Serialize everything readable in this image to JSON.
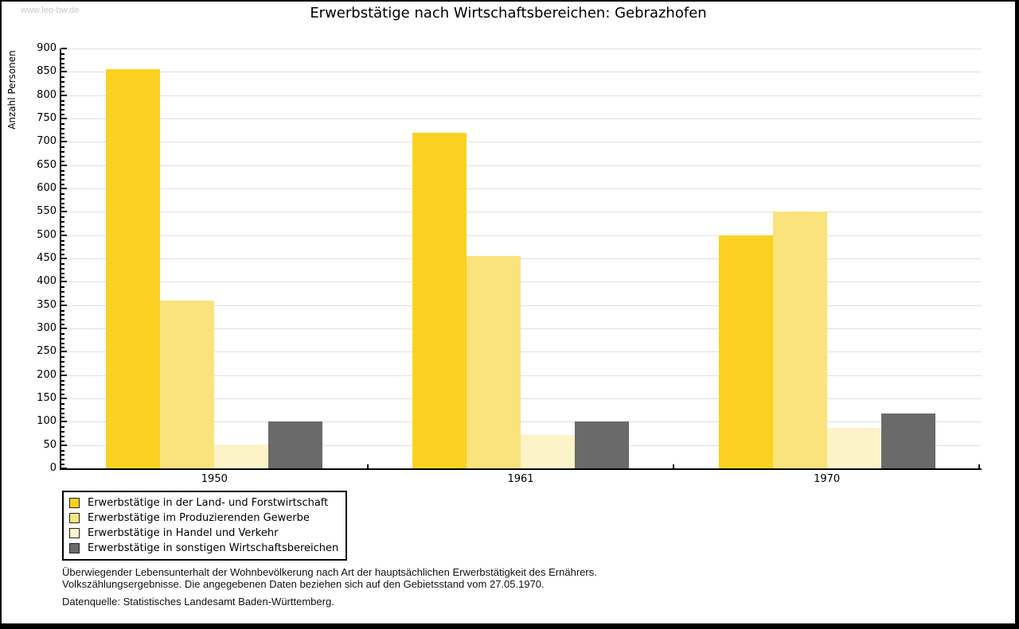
{
  "watermark": "www.leo-bw.de",
  "title": "Erwerbstätige nach Wirtschaftsbereichen: Gebrazhofen",
  "chart_data": {
    "type": "bar",
    "title": "Erwerbstätige nach Wirtschaftsbereichen: Gebrazhofen",
    "xlabel": "",
    "ylabel": "Anzahl Personen",
    "ylim": [
      0,
      900
    ],
    "ytick_step": 50,
    "minor_tick_step": 10,
    "grid": "horizontal",
    "legend_position": "bottom-left",
    "categories": [
      "1950",
      "1961",
      "1970"
    ],
    "series": [
      {
        "name": "Erwerbstätige in der Land- und Forstwirtschaft",
        "color": "#FBD121",
        "values": [
          855,
          719,
          500
        ]
      },
      {
        "name": "Erwerbstätige im Produzierenden Gewerbe",
        "color": "#FAE37C",
        "values": [
          360,
          455,
          550
        ]
      },
      {
        "name": "Erwerbstätige in Handel und Verkehr",
        "color": "#FCF3C8",
        "values": [
          52,
          72,
          87
        ]
      },
      {
        "name": "Erwerbstätige in sonstigen Wirtschaftsbereichen",
        "color": "#6A6A6A",
        "values": [
          100,
          100,
          117
        ]
      }
    ],
    "colors": {
      "grid": "#E0E0E0",
      "axis": "#000000",
      "watermark": "#C9C9C9"
    }
  },
  "footer": {
    "line1": "Überwiegender Lebensunterhalt der Wohnbevölkerung nach Art der hauptsächlichen Erwerbstätigkeit des Ernährers.",
    "line2": "Volkszählungsergebnisse. Die angegebenen Daten beziehen sich auf den Gebietsstand vom 27.05.1970.",
    "source": "Datenquelle: Statistisches Landesamt Baden-Württemberg."
  }
}
